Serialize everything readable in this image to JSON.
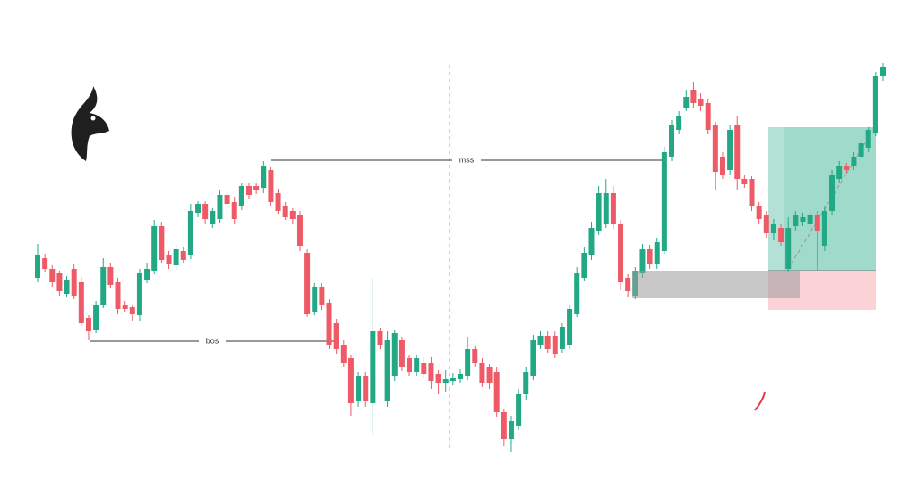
{
  "chart_data": {
    "type": "candlestick",
    "annotations": [
      "bos",
      "mss"
    ],
    "up_color": "#22a884",
    "down_color": "#ef5a67",
    "ylim": [
      0,
      538
    ],
    "open": [
      228,
      250,
      238,
      233,
      210,
      238,
      223,
      183,
      170,
      198,
      240,
      223,
      198,
      195,
      186,
      226,
      236,
      286,
      253,
      242,
      258,
      253,
      300,
      310,
      288,
      293,
      320,
      313,
      308,
      330,
      330,
      328,
      348,
      323,
      308,
      302,
      298,
      256,
      190,
      218,
      200,
      178,
      153,
      138,
      90,
      118,
      88,
      168,
      90,
      118,
      158,
      138,
      123,
      133,
      133,
      120,
      111,
      113,
      115,
      118,
      148,
      133,
      128,
      123,
      78,
      48,
      63,
      98,
      118,
      153,
      163,
      163,
      148,
      153,
      188,
      228,
      253,
      280,
      288,
      323,
      288,
      228,
      208,
      233,
      260,
      243,
      258,
      363,
      393,
      418,
      438,
      428,
      423,
      398,
      363,
      348,
      398,
      338,
      338,
      308,
      298,
      278,
      283,
      238,
      286,
      290,
      288,
      298,
      263,
      303,
      338,
      353,
      353,
      363,
      373,
      390,
      453
    ],
    "high": [
      266,
      254,
      242,
      236,
      230,
      243,
      228,
      186,
      202,
      250,
      245,
      228,
      202,
      198,
      238,
      244,
      292,
      290,
      258,
      264,
      262,
      310,
      314,
      314,
      306,
      326,
      324,
      318,
      334,
      334,
      334,
      358,
      352,
      327,
      312,
      306,
      302,
      260,
      222,
      222,
      204,
      182,
      158,
      142,
      123,
      123,
      228,
      172,
      168,
      170,
      162,
      142,
      142,
      140,
      140,
      125,
      125,
      122,
      126,
      162,
      152,
      138,
      132,
      128,
      82,
      74,
      104,
      128,
      164,
      168,
      168,
      168,
      178,
      198,
      240,
      262,
      290,
      330,
      338,
      330,
      292,
      232,
      240,
      266,
      264,
      272,
      374,
      404,
      414,
      438,
      446,
      434,
      428,
      402,
      368,
      398,
      408,
      343,
      342,
      312,
      302,
      294,
      288,
      296,
      302,
      300,
      302,
      302,
      308,
      348,
      358,
      356,
      368,
      382,
      396,
      458,
      468
    ],
    "low": [
      223,
      234,
      218,
      208,
      206,
      204,
      174,
      158,
      166,
      194,
      216,
      188,
      190,
      180,
      180,
      222,
      232,
      244,
      238,
      238,
      244,
      249,
      296,
      288,
      284,
      289,
      306,
      288,
      304,
      316,
      322,
      323,
      308,
      299,
      292,
      288,
      258,
      184,
      186,
      192,
      148,
      143,
      128,
      74,
      84,
      84,
      53,
      148,
      84,
      113,
      124,
      118,
      118,
      116,
      104,
      98,
      100,
      108,
      110,
      114,
      128,
      106,
      104,
      72,
      40,
      34,
      58,
      92,
      114,
      148,
      144,
      138,
      144,
      148,
      184,
      224,
      248,
      276,
      284,
      282,
      214,
      206,
      204,
      228,
      238,
      238,
      254,
      358,
      388,
      414,
      418,
      414,
      388,
      326,
      338,
      343,
      326,
      328,
      302,
      288,
      272,
      270,
      263,
      234,
      280,
      286,
      284,
      236,
      258,
      298,
      334,
      344,
      348,
      358,
      368,
      386,
      448
    ],
    "close": [
      253,
      238,
      223,
      213,
      225,
      208,
      178,
      168,
      198,
      240,
      220,
      193,
      193,
      188,
      233,
      238,
      286,
      248,
      243,
      260,
      248,
      303,
      310,
      293,
      302,
      320,
      310,
      293,
      330,
      320,
      326,
      353,
      313,
      303,
      296,
      293,
      263,
      188,
      218,
      198,
      153,
      148,
      133,
      88,
      118,
      90,
      168,
      153,
      158,
      166,
      128,
      123,
      138,
      120,
      113,
      110,
      115,
      116,
      120,
      148,
      133,
      110,
      110,
      78,
      48,
      68,
      98,
      123,
      158,
      163,
      148,
      143,
      173,
      193,
      233,
      256,
      283,
      323,
      323,
      288,
      223,
      213,
      236,
      260,
      243,
      268,
      368,
      398,
      408,
      430,
      423,
      420,
      393,
      346,
      343,
      393,
      338,
      333,
      308,
      293,
      278,
      288,
      268,
      283,
      298,
      296,
      298,
      280,
      303,
      343,
      353,
      348,
      363,
      378,
      393,
      453,
      463
    ]
  }
}
